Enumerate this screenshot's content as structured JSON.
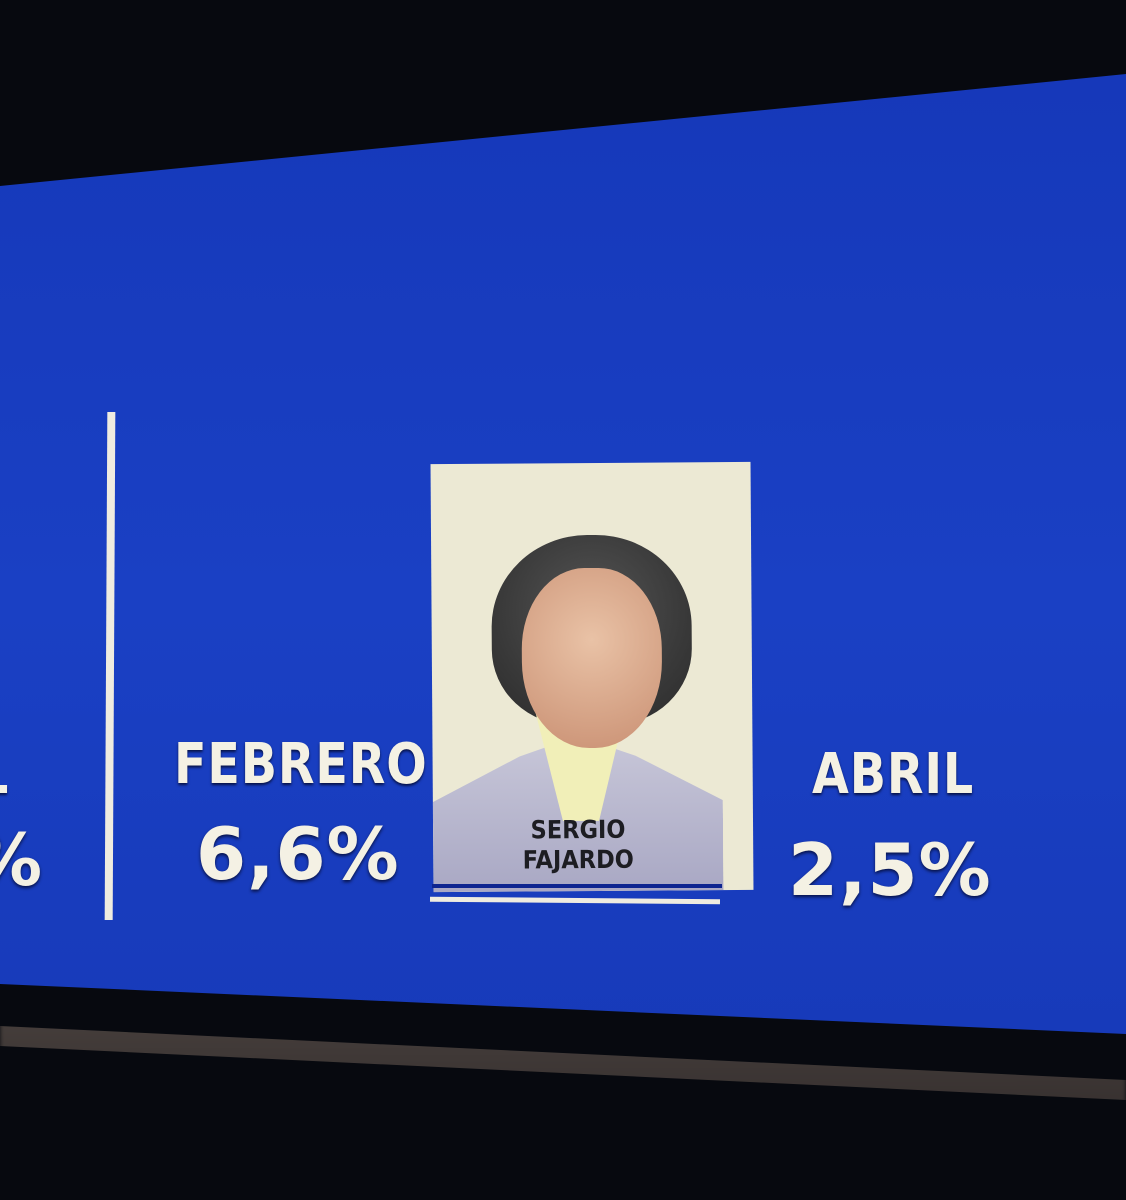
{
  "left_partial": {
    "label": "L",
    "value": "%"
  },
  "febrero": {
    "label": "FEBRERO",
    "value": "6,6%"
  },
  "candidate": {
    "first_name": "SERGIO",
    "last_name": "FAJARDO"
  },
  "abril": {
    "label": "ABRIL",
    "value": "2,5%"
  },
  "colors": {
    "screen_blue": "#1a40c4",
    "text": "#f4f1e4",
    "card": "#ece9d4"
  }
}
